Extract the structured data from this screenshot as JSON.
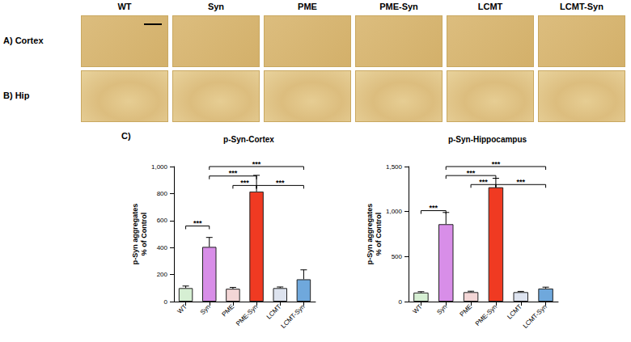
{
  "panels": {
    "columns": [
      "WT",
      "Syn",
      "PME",
      "PME-Syn",
      "LCMT",
      "LCMT-Syn"
    ],
    "rows": [
      "A) Cortex",
      "B) Hip"
    ],
    "chart_label": "C)"
  },
  "chart_data": [
    {
      "type": "bar",
      "title": "p-Syn-Cortex",
      "y_label": "p-Syn aggregates\n% of Control",
      "categories": [
        "WT",
        "Syn",
        "PME",
        "PME-Syn",
        "LCMT",
        "LCMT-Syn"
      ],
      "values": [
        100,
        405,
        95,
        815,
        100,
        165
      ],
      "errors": [
        15,
        70,
        10,
        120,
        8,
        70
      ],
      "colors": [
        "#d6efd3",
        "#d88ee8",
        "#f3d6d6",
        "#f03a22",
        "#dde3ef",
        "#6fa8dc"
      ],
      "ylim": [
        0,
        1000
      ],
      "yticks": [
        0,
        200,
        400,
        600,
        800,
        1000
      ],
      "grid": false,
      "significance": [
        {
          "from": "Syn",
          "to": "LCMT-Syn",
          "y": 1000,
          "label": "***"
        },
        {
          "from": "Syn",
          "to": "PME-Syn",
          "y": 930,
          "label": "***"
        },
        {
          "from": "PME",
          "to": "PME-Syn",
          "y": 860,
          "label": "***"
        },
        {
          "from": "PME-Syn",
          "to": "LCMT-Syn",
          "y": 860,
          "label": "***"
        },
        {
          "from": "WT",
          "to": "Syn",
          "y": 560,
          "label": "***"
        }
      ]
    },
    {
      "type": "bar",
      "title": "p-Syn-Hippocampus",
      "y_label": "p-Syn aggregates\n% of Control",
      "categories": [
        "WT",
        "Syn",
        "PME",
        "PME-Syn",
        "LCMT",
        "LCMT-Syn"
      ],
      "values": [
        100,
        860,
        105,
        1270,
        105,
        145
      ],
      "errors": [
        10,
        130,
        10,
        100,
        8,
        15
      ],
      "colors": [
        "#d6efd3",
        "#d88ee8",
        "#f3d6d6",
        "#f03a22",
        "#dde3ef",
        "#6fa8dc"
      ],
      "ylim": [
        0,
        1500
      ],
      "yticks": [
        0,
        500,
        1000,
        1500
      ],
      "grid": false,
      "significance": [
        {
          "from": "Syn",
          "to": "LCMT-Syn",
          "y": 1500,
          "label": "***"
        },
        {
          "from": "Syn",
          "to": "PME-Syn",
          "y": 1400,
          "label": "***"
        },
        {
          "from": "PME",
          "to": "PME-Syn",
          "y": 1300,
          "label": "***"
        },
        {
          "from": "PME-Syn",
          "to": "LCMT-Syn",
          "y": 1300,
          "label": "***"
        },
        {
          "from": "WT",
          "to": "Syn",
          "y": 1010,
          "label": "***"
        }
      ]
    }
  ]
}
